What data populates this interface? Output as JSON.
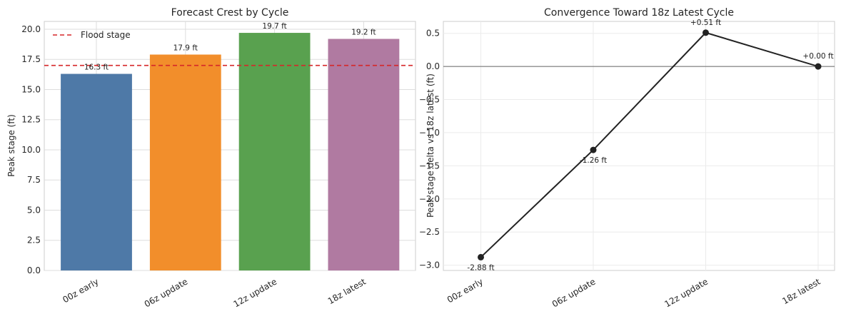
{
  "chart_data": [
    {
      "type": "bar",
      "title": "Forecast Crest by Cycle",
      "xlabel": "",
      "ylabel": "Peak stage (ft)",
      "categories": [
        "00z early",
        "06z update",
        "12z update",
        "18z latest"
      ],
      "values": [
        16.3,
        17.9,
        19.7,
        19.2
      ],
      "data_labels": [
        "16.3 ft",
        "17.9 ft",
        "19.7 ft",
        "19.2 ft"
      ],
      "colors": [
        "#4e79a7",
        "#f28e2b",
        "#59a14f",
        "#b07aa1"
      ],
      "ylim": [
        0,
        20.65
      ],
      "yticks": [
        0.0,
        2.5,
        5.0,
        7.5,
        10.0,
        12.5,
        15.0,
        17.5,
        20.0
      ],
      "ytick_labels": [
        "0.0",
        "2.5",
        "5.0",
        "7.5",
        "10.0",
        "12.5",
        "15.0",
        "17.5",
        "20.0"
      ],
      "reference_line": {
        "name": "Flood stage",
        "value": 17.0,
        "color": "#d62728",
        "style": "dashed"
      },
      "legend": {
        "placement": "top-left",
        "entries": [
          "Flood stage"
        ]
      },
      "grid": true
    },
    {
      "type": "line",
      "title": "Convergence Toward 18z Latest Cycle",
      "xlabel": "",
      "ylabel": "Peak stage delta vs 18z latest (ft)",
      "categories": [
        "00z early",
        "06z update",
        "12z update",
        "18z latest"
      ],
      "values": [
        -2.88,
        -1.26,
        0.51,
        0.0
      ],
      "data_labels": [
        "-2.88 ft",
        "-1.26 ft",
        "+0.51 ft",
        "+0.00 ft"
      ],
      "color": "#222222",
      "ylim": [
        -3.08,
        0.68
      ],
      "yticks": [
        -3.0,
        -2.5,
        -2.0,
        -1.5,
        -1.0,
        -0.5,
        0.0,
        0.5
      ],
      "ytick_labels": [
        "−3.0",
        "−2.5",
        "−2.0",
        "−1.5",
        "−1.0",
        "−0.5",
        "0.0",
        "0.5"
      ],
      "reference_line": {
        "value": 0.0,
        "color": "#666666",
        "style": "solid"
      },
      "grid": true
    }
  ]
}
